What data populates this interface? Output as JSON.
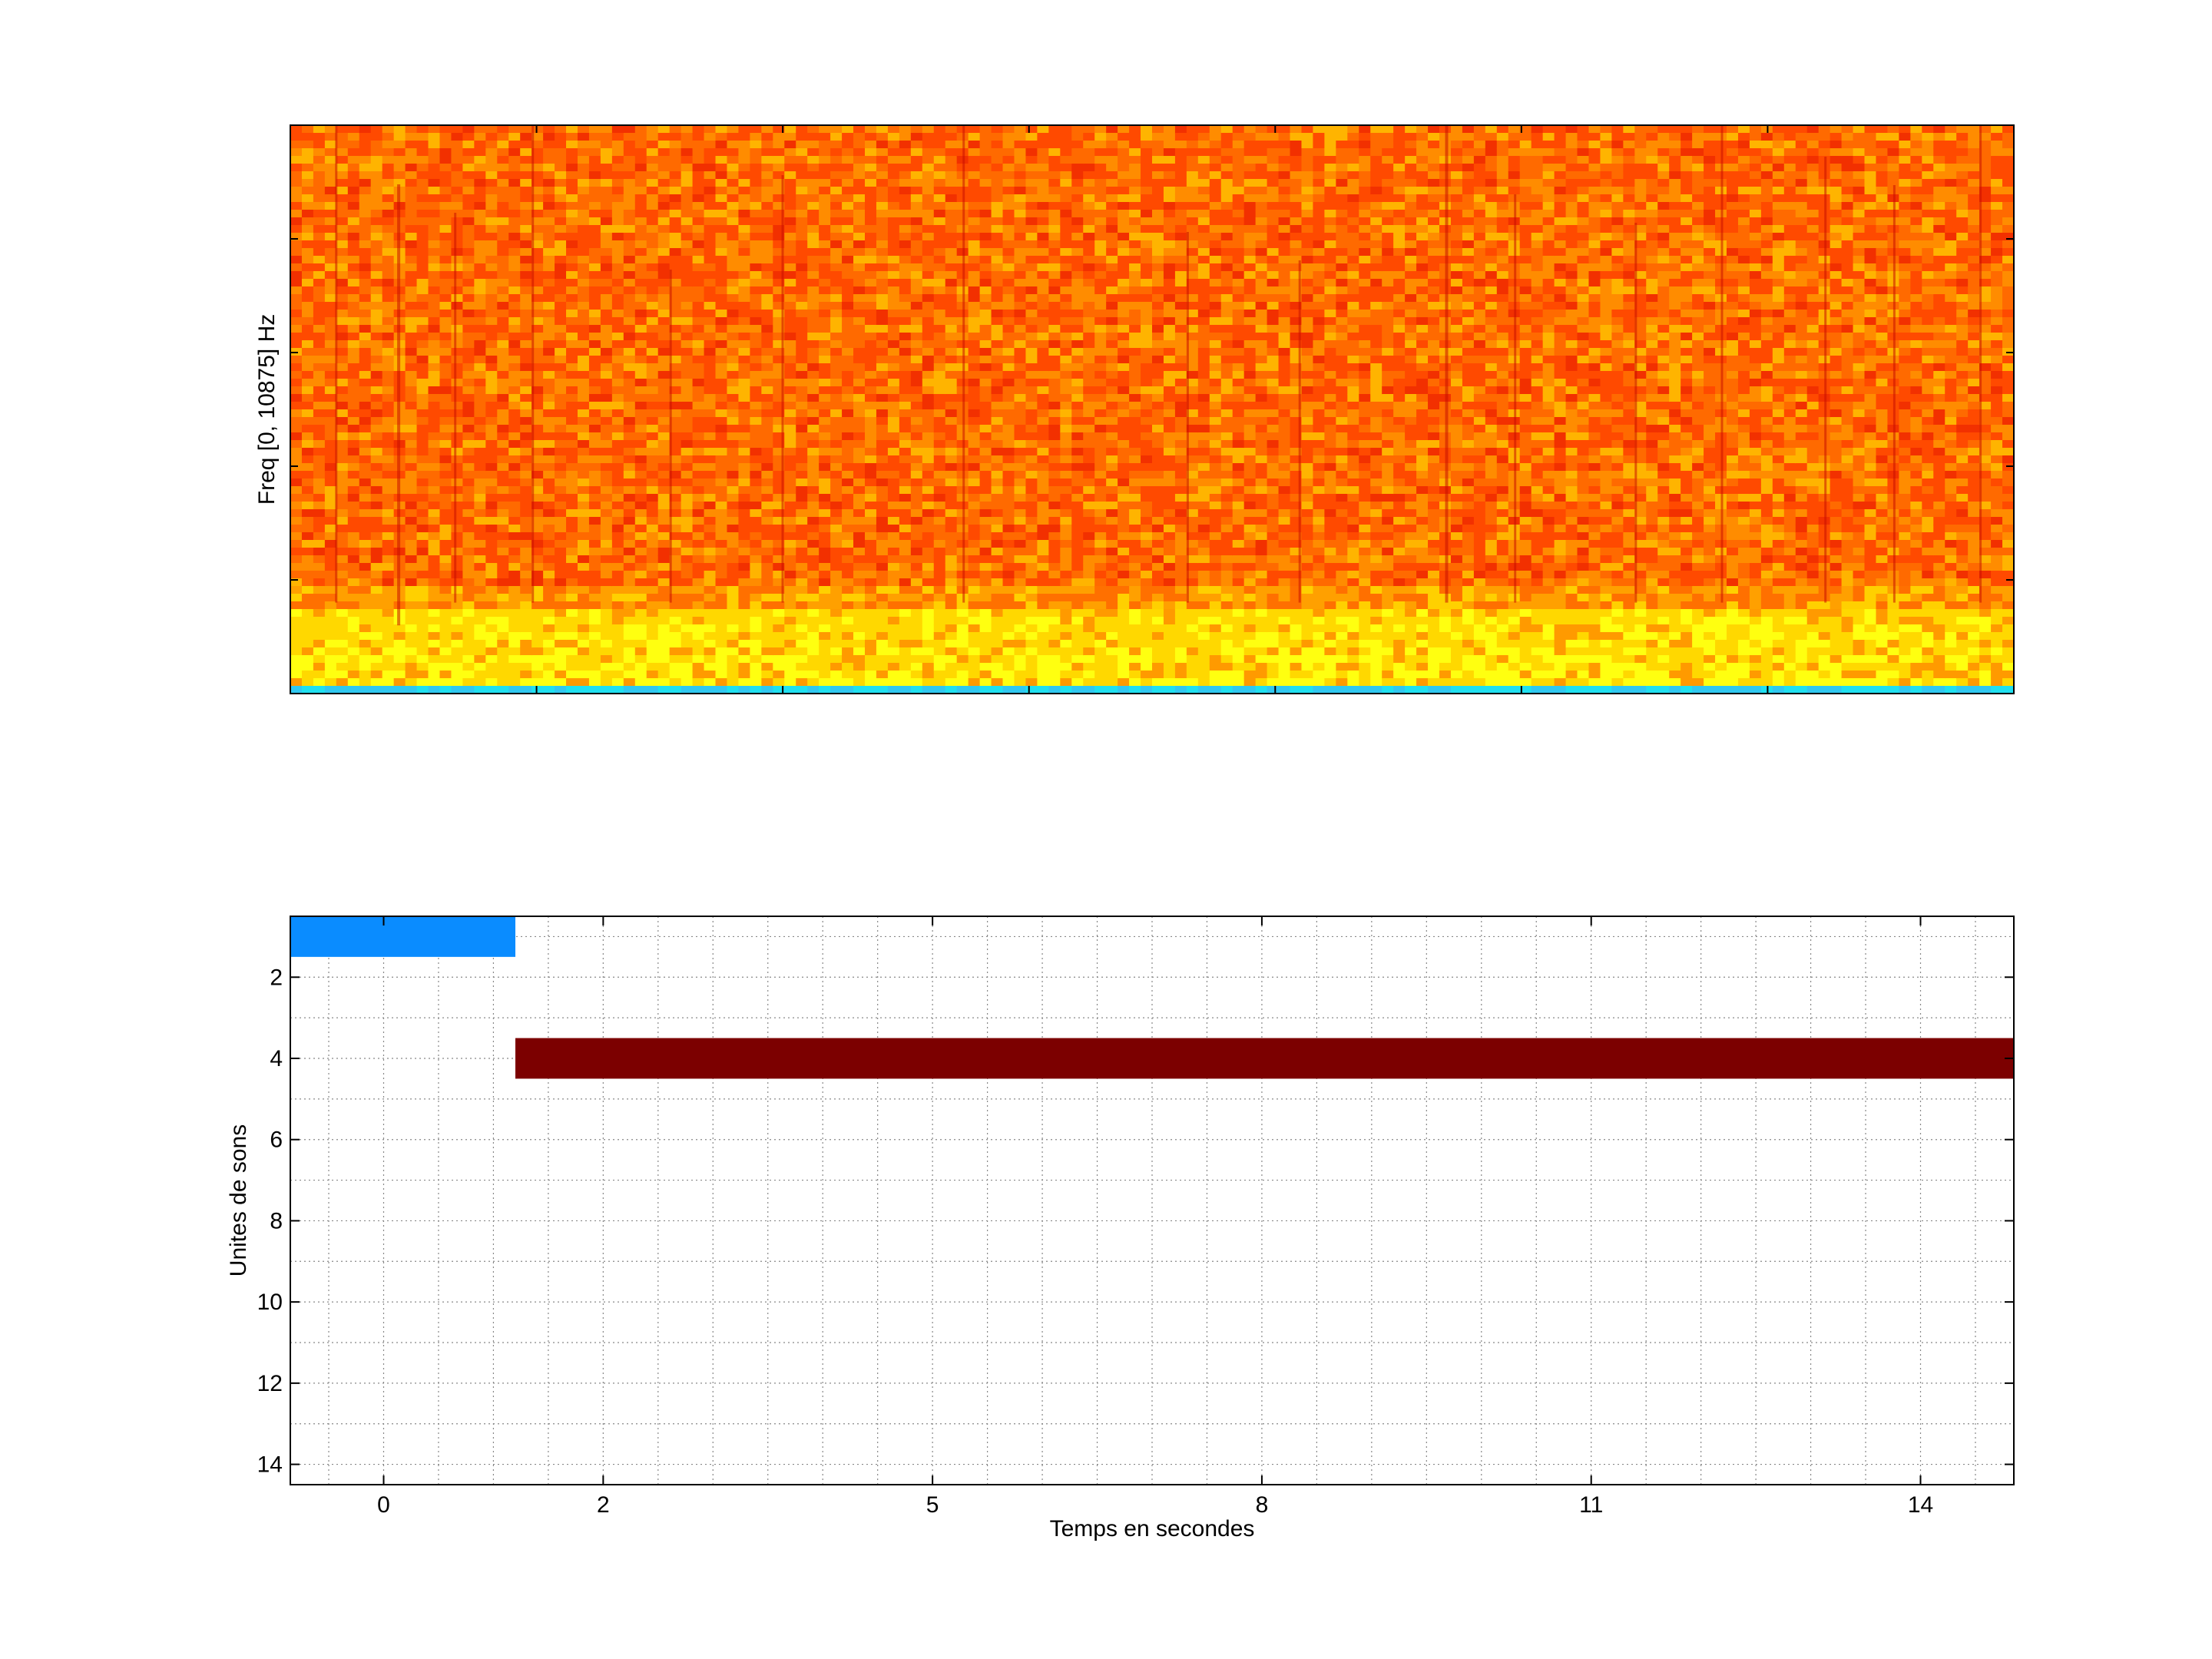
{
  "chart_data": [
    {
      "type": "heatmap",
      "title": "",
      "xlabel": "",
      "ylabel": "Freq [0, 10875] Hz",
      "x_tick_labels": [],
      "y_tick_labels": [],
      "colormap": "jet",
      "palette": [
        "#00ffff",
        "#ffff00",
        "#ff7f00",
        "#ff0000",
        "#800000"
      ],
      "description_bands": [
        {
          "freq_fraction_from": 0.0,
          "freq_fraction_to": 0.015,
          "color": "cyan"
        },
        {
          "freq_fraction_from": 0.015,
          "freq_fraction_to": 0.15,
          "color": "yellow"
        },
        {
          "freq_fraction_from": 0.15,
          "freq_fraction_to": 1.0,
          "color": "orange-red"
        }
      ]
    },
    {
      "type": "bar",
      "orientation": "horizontal-segments",
      "title": "",
      "xlabel": "Temps en secondes",
      "ylabel": "Unites de sons",
      "xlim": [
        -0.85,
        14.85
      ],
      "ylim": [
        0.5,
        14.5
      ],
      "y_reversed": true,
      "x_ticks": [
        0,
        2,
        5,
        8,
        11,
        14
      ],
      "x_tick_labels": [
        "0",
        "2",
        "5",
        "8",
        "11",
        "14"
      ],
      "y_ticks": [
        2,
        4,
        6,
        8,
        10,
        12,
        14
      ],
      "y_tick_labels": [
        "2",
        "4",
        "6",
        "8",
        "10",
        "12",
        "14"
      ],
      "grid": true,
      "segments": [
        {
          "unit": 1,
          "start": -0.85,
          "end": 1.2,
          "color": "#0a8cff"
        },
        {
          "unit": 4,
          "start": 1.2,
          "end": 14.85,
          "color": "#7c0000"
        }
      ]
    }
  ]
}
